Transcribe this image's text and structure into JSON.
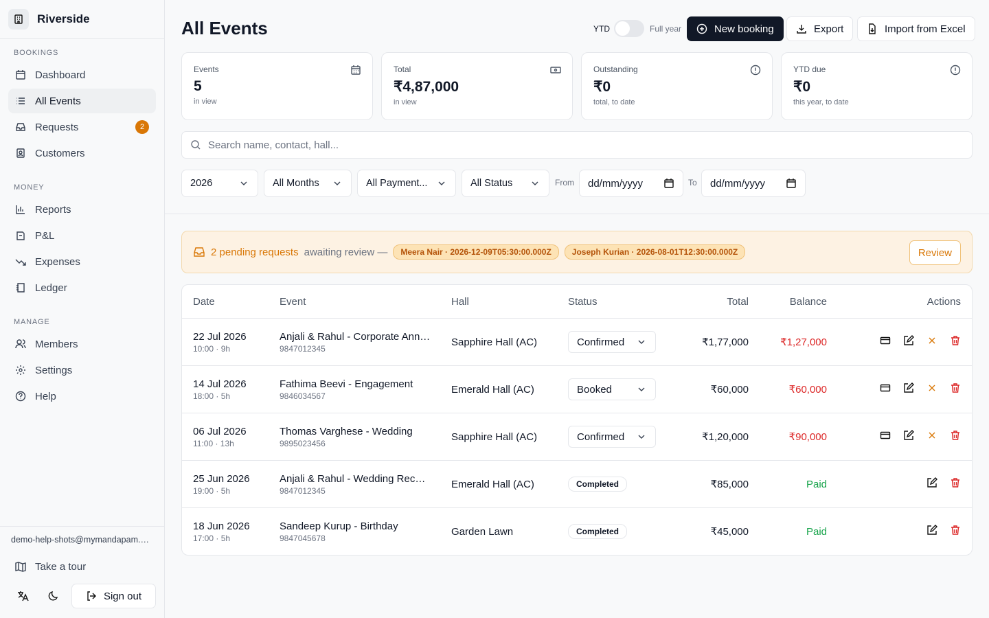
{
  "sidebar": {
    "brand": "Riverside",
    "sections": [
      {
        "title": "BOOKINGS",
        "items": [
          {
            "label": "Dashboard"
          },
          {
            "label": "All Events"
          },
          {
            "label": "Requests",
            "badge": "2"
          },
          {
            "label": "Customers"
          }
        ]
      },
      {
        "title": "MONEY",
        "items": [
          {
            "label": "Reports"
          },
          {
            "label": "P&L"
          },
          {
            "label": "Expenses"
          },
          {
            "label": "Ledger"
          }
        ]
      },
      {
        "title": "MANAGE",
        "items": [
          {
            "label": "Members"
          },
          {
            "label": "Settings"
          },
          {
            "label": "Help"
          }
        ]
      }
    ],
    "user": "demo-help-shots@mymandapam.com",
    "tour": "Take a tour",
    "sign_out": "Sign out"
  },
  "header": {
    "title": "All Events",
    "toggle_left": "YTD",
    "toggle_right": "Full year",
    "buttons": [
      "New booking",
      "Export",
      "Import from Excel"
    ]
  },
  "stats": [
    {
      "label": "Events",
      "value": "5",
      "sub": "in view"
    },
    {
      "label": "Total",
      "value": "₹4,87,000",
      "sub": "in view"
    },
    {
      "label": "Outstanding",
      "value": "₹0",
      "sub": "total, to date"
    },
    {
      "label": "YTD due",
      "value": "₹0",
      "sub": "this year, to date"
    }
  ],
  "search_placeholder": "Search name, contact, hall...",
  "filters": {
    "year": "2026",
    "months": "All Months",
    "payment": "All Payment...",
    "status": "All Status",
    "from": "From",
    "to": "To",
    "date_placeholder": "dd/mm/yyyy"
  },
  "banner": {
    "count": "2 pending requests",
    "text": "awaiting review —",
    "chips": [
      "Meera Nair · 2026-12-09T05:30:00.000Z",
      "Joseph Kurian · 2026-08-01T12:30:00.000Z"
    ],
    "button": "Review"
  },
  "table": {
    "columns": [
      "Date",
      "Event",
      "Hall",
      "Status",
      "Total",
      "Balance",
      "Actions"
    ],
    "rows": [
      {
        "date": "22 Jul 2026",
        "time": "10:00 · 9h",
        "event": "Anjali & Rahul - Corporate Annual Meet",
        "phone": "9847012345",
        "hall": "Sapphire Hall (AC)",
        "status_select": "Confirmed",
        "total": "₹1,77,000",
        "balance_due": "₹1,27,000"
      },
      {
        "date": "14 Jul 2026",
        "time": "18:00 · 5h",
        "event": "Fathima Beevi - Engagement",
        "phone": "9846034567",
        "hall": "Emerald Hall (AC)",
        "status_select": "Booked",
        "total": "₹60,000",
        "balance_due": "₹60,000"
      },
      {
        "date": "06 Jul 2026",
        "time": "11:00 · 13h",
        "event": "Thomas Varghese - Wedding",
        "phone": "9895023456",
        "hall": "Sapphire Hall (AC)",
        "status_select": "Confirmed",
        "total": "₹1,20,000",
        "balance_due": "₹90,000"
      },
      {
        "date": "25 Jun 2026",
        "time": "19:00 · 5h",
        "event": "Anjali & Rahul - Wedding Reception",
        "phone": "9847012345",
        "hall": "Emerald Hall (AC)",
        "status_badge": "Completed",
        "total": "₹85,000",
        "balance_settled": "Paid"
      },
      {
        "date": "18 Jun 2026",
        "time": "17:00 · 5h",
        "event": "Sandeep Kurup - Birthday",
        "phone": "9847045678",
        "hall": "Garden Lawn",
        "status_badge": "Completed",
        "total": "₹45,000",
        "balance_settled": "Paid"
      }
    ]
  }
}
